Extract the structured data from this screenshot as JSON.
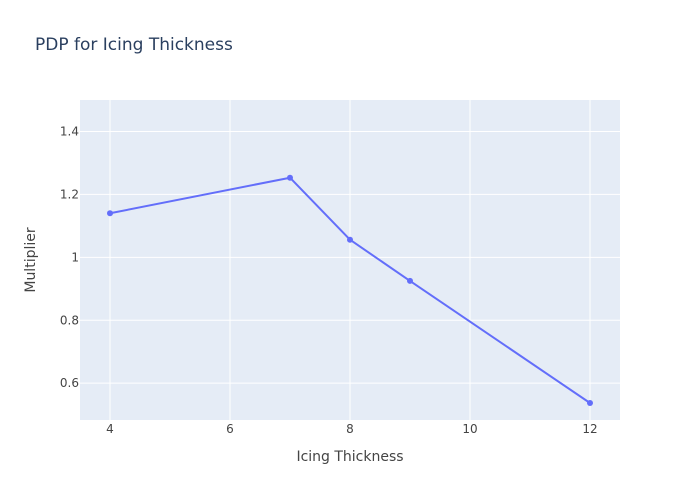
{
  "chart_data": {
    "type": "line",
    "title": "PDP for Icing Thickness",
    "xlabel": "Icing Thickness",
    "ylabel": "Multiplier",
    "x": [
      4,
      7,
      8,
      9,
      12
    ],
    "series": [
      {
        "values": [
          1.14,
          1.253,
          1.056,
          0.925,
          0.537
        ]
      }
    ],
    "xlim": [
      3.5,
      12.5
    ],
    "ylim": [
      0.483,
      1.5
    ],
    "xticks": [
      4,
      6,
      8,
      10,
      12
    ],
    "yticks": [
      0.6,
      0.8,
      1,
      1.2,
      1.4
    ],
    "xtick_labels": [
      "4",
      "6",
      "8",
      "10",
      "12"
    ],
    "ytick_labels": [
      "0.6",
      "0.8",
      "1",
      "1.2",
      "1.4"
    ],
    "grid": true,
    "colors": {
      "plot_background": "#e5ecf6",
      "grid": "#ffffff",
      "line": "#636efa",
      "text": "#444444",
      "title": "#2a3f5f"
    }
  }
}
